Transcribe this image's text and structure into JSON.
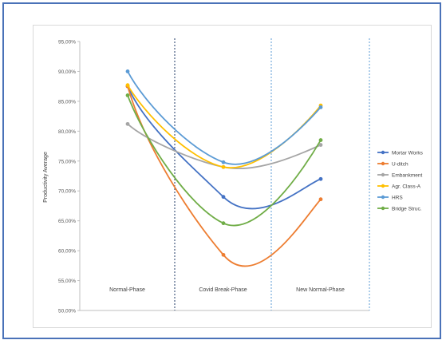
{
  "chart_data": {
    "type": "line",
    "title": "",
    "xlabel": "",
    "ylabel": "Productivity Average",
    "ylim": [
      50,
      95
    ],
    "y_ticks": [
      "50,00%",
      "55,00%",
      "60,00%",
      "65,00%",
      "70,00%",
      "75,00%",
      "80,00%",
      "85,00%",
      "90,00%",
      "95,00%"
    ],
    "x_positions": [
      1,
      2,
      3
    ],
    "phases": [
      "Normal-Phase",
      "Covid Break-Phase",
      "New Normal-Phase"
    ],
    "legend_position": "right",
    "grid": false,
    "series": [
      {
        "name": "Mortar Works",
        "color": "#4472c4",
        "values": [
          87.5,
          69.0,
          72.0
        ]
      },
      {
        "name": "U-ditch",
        "color": "#ed7d31",
        "values": [
          87.5,
          59.3,
          68.6
        ]
      },
      {
        "name": "Embankment",
        "color": "#a5a5a5",
        "values": [
          81.2,
          74.0,
          77.7
        ]
      },
      {
        "name": "Agr. Class-A",
        "color": "#ffc000",
        "values": [
          87.7,
          74.0,
          84.3
        ]
      },
      {
        "name": "HRS",
        "color": "#5b9bd5",
        "values": [
          90.0,
          74.8,
          84.0
        ]
      },
      {
        "name": "Bridge Struc.",
        "color": "#70ad47",
        "values": [
          86.0,
          64.6,
          78.5
        ]
      }
    ]
  }
}
